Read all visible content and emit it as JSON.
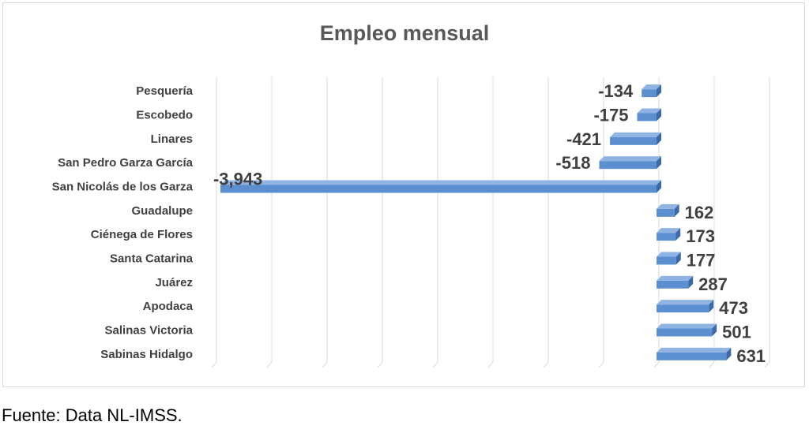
{
  "chart_data": {
    "type": "bar",
    "orientation": "horizontal",
    "title": "Empleo mensual",
    "categories": [
      "Pesquería",
      "Escobedo",
      "Linares",
      "San Pedro Garza García",
      "San Nicolás de los Garza",
      "Guadalupe",
      "Ciénega de Flores",
      "Santa Catarina",
      "Juárez",
      "Apodaca",
      "Salinas Victoria",
      "Sabinas Hidalgo"
    ],
    "values": [
      -134,
      -175,
      -421,
      -518,
      -3943,
      162,
      173,
      177,
      287,
      473,
      501,
      631
    ],
    "value_labels": [
      "-134",
      "-175",
      "-421",
      "-518",
      "-3,943",
      "162",
      "173",
      "177",
      "287",
      "473",
      "501",
      "631"
    ],
    "xlim": [
      -4000,
      1000
    ],
    "grid": true,
    "bar_color": "#5b8fd0",
    "bar_top_color": "#8fb4e3",
    "bar_side_color": "#3c6aa8"
  },
  "footer": {
    "source": "Fuente: Data NL-IMSS."
  }
}
